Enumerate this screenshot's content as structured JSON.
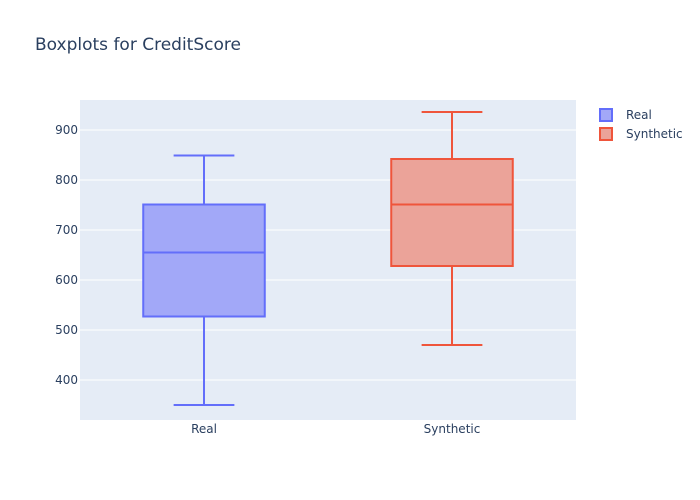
{
  "chart_data": {
    "type": "box",
    "title": "Boxplots for CreditScore",
    "xlabel": "",
    "ylabel": "",
    "ylim": [
      320,
      960
    ],
    "yticks": [
      400,
      500,
      600,
      700,
      800,
      900
    ],
    "grid": true,
    "legend_position": "top-right",
    "categories": [
      "Real",
      "Synthetic"
    ],
    "series": [
      {
        "name": "Real",
        "category": "Real",
        "min": 350,
        "q1": 527,
        "median": 655,
        "q3": 751,
        "max": 849,
        "line_color": "#636efa",
        "fill_color": "#a2a8f8"
      },
      {
        "name": "Synthetic",
        "category": "Synthetic",
        "min": 470,
        "q1": 628,
        "median": 751,
        "q3": 842,
        "max": 936,
        "line_color": "#ef553b",
        "fill_color": "#eba399"
      }
    ],
    "colors": {
      "plot_background": "#e5ecf6",
      "gridline": "#ffffff",
      "text": "#2a3f5f"
    }
  }
}
